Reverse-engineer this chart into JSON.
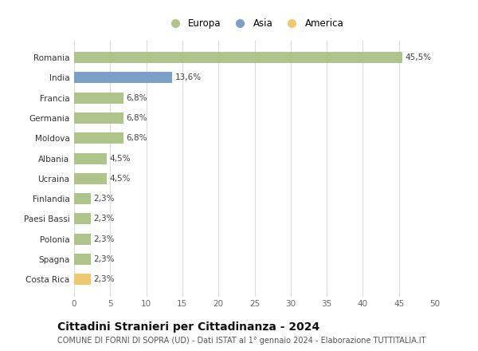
{
  "categories": [
    "Romania",
    "India",
    "Francia",
    "Germania",
    "Moldova",
    "Albania",
    "Ucraina",
    "Finlandia",
    "Paesi Bassi",
    "Polonia",
    "Spagna",
    "Costa Rica"
  ],
  "values": [
    45.5,
    13.6,
    6.8,
    6.8,
    6.8,
    4.5,
    4.5,
    2.3,
    2.3,
    2.3,
    2.3,
    2.3
  ],
  "labels": [
    "45,5%",
    "13,6%",
    "6,8%",
    "6,8%",
    "6,8%",
    "4,5%",
    "4,5%",
    "2,3%",
    "2,3%",
    "2,3%",
    "2,3%",
    "2,3%"
  ],
  "continents": [
    "Europa",
    "Asia",
    "Europa",
    "Europa",
    "Europa",
    "Europa",
    "Europa",
    "Europa",
    "Europa",
    "Europa",
    "Europa",
    "America"
  ],
  "colors": {
    "Europa": "#aec48a",
    "Asia": "#7b9fc7",
    "America": "#f0c96e"
  },
  "legend": [
    {
      "label": "Europa",
      "color": "#aec48a"
    },
    {
      "label": "Asia",
      "color": "#7b9fc7"
    },
    {
      "label": "America",
      "color": "#f0c96e"
    }
  ],
  "xlim": [
    0,
    50
  ],
  "xticks": [
    0,
    5,
    10,
    15,
    20,
    25,
    30,
    35,
    40,
    45,
    50
  ],
  "title": "Cittadini Stranieri per Cittadinanza - 2024",
  "subtitle": "COMUNE DI FORNI DI SOPRA (UD) - Dati ISTAT al 1° gennaio 2024 - Elaborazione TUTTITALIA.IT",
  "background_color": "#ffffff",
  "grid_color": "#dddddd",
  "label_fontsize": 7.5,
  "tick_fontsize": 7.5,
  "ylabel_fontsize": 7.5,
  "title_fontsize": 10,
  "subtitle_fontsize": 7,
  "bar_height": 0.55
}
